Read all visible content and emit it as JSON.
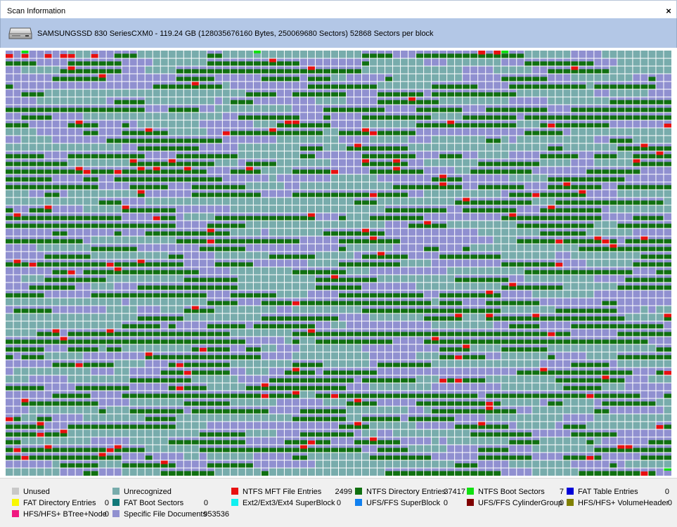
{
  "window": {
    "title": "Scan Information",
    "close_label": "×"
  },
  "disk": {
    "icon": "hard-drive-icon",
    "info": "SAMSUNGSSD 830 SeriesCXM0 - 119.24 GB (128035676160 Bytes, 250069680 Sectors) 52868 Sectors per block"
  },
  "legend": [
    {
      "label": "Unused",
      "count": "",
      "color": "#c8c8c8"
    },
    {
      "label": "Unrecognized",
      "count": "",
      "color": "#78acac"
    },
    {
      "label": "NTFS MFT File Entries",
      "count": "2499",
      "color": "#e81010"
    },
    {
      "label": "NTFS Directory Entries",
      "count": "37417",
      "color": "#107010"
    },
    {
      "label": "NTFS Boot Sectors",
      "count": "7",
      "color": "#10e010"
    },
    {
      "label": "FAT Table Entries",
      "count": "0",
      "color": "#0000d8"
    },
    {
      "label": "FAT Directory Entries",
      "count": "0",
      "color": "#f8f800"
    },
    {
      "label": "FAT Boot Sectors",
      "count": "0",
      "color": "#107878"
    },
    {
      "label": "Ext2/Ext3/Ext4 SuperBlock",
      "count": "0",
      "color": "#10f0f0"
    },
    {
      "label": "UFS/FFS SuperBlock",
      "count": "0",
      "color": "#1080f0"
    },
    {
      "label": "UFS/FFS CylinderGroup",
      "count": "0",
      "color": "#800000"
    },
    {
      "label": "HFS/HFS+ VolumeHeader",
      "count": "0",
      "color": "#808000"
    },
    {
      "label": "HFS/HFS+ BTree+Node",
      "count": "0",
      "color": "#f01880"
    },
    {
      "label": "Specific File Documents",
      "count": "953536",
      "color": "#9090d0"
    }
  ],
  "block_map": {
    "columns": 86,
    "rows": 55,
    "palette": {
      "background": "#9090d0",
      "unrecognized": "#78acac",
      "directory": "#107010",
      "mft": "#e81010",
      "boot": "#10e010",
      "gridline": "#ffffff"
    }
  }
}
